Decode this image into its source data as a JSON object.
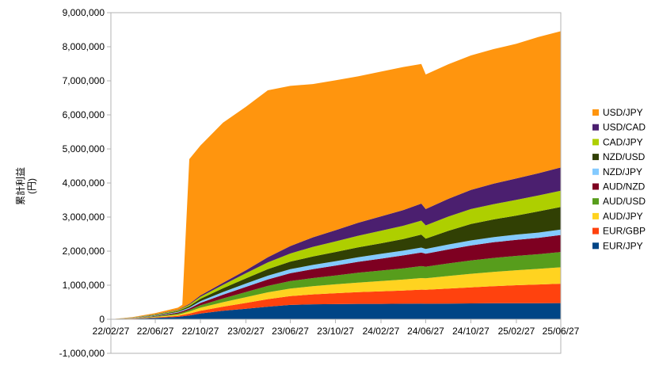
{
  "chart_data": {
    "type": "area",
    "stacked": true,
    "ylabel_lines": [
      "累計利益",
      "(円)"
    ],
    "ylim": [
      -1000000,
      9000000
    ],
    "yticks": [
      -1000000,
      0,
      1000000,
      2000000,
      3000000,
      4000000,
      5000000,
      6000000,
      7000000,
      8000000,
      9000000
    ],
    "ytick_labels": [
      "-1,000,000",
      "0",
      "1,000,000",
      "2,000,000",
      "3,000,000",
      "4,000,000",
      "5,000,000",
      "6,000,000",
      "7,000,000",
      "8,000,000",
      "9,000,000"
    ],
    "xlim": [
      "2022-02-27",
      "2025-06-27"
    ],
    "xticks": [
      "2022-02-27",
      "2022-06-27",
      "2022-10-27",
      "2023-02-27",
      "2023-06-27",
      "2023-10-27",
      "2024-02-27",
      "2024-06-27",
      "2024-10-27",
      "2025-02-27",
      "2025-06-27"
    ],
    "xtick_labels": [
      "22/02/27",
      "22/06/27",
      "22/10/27",
      "23/02/27",
      "23/06/27",
      "23/10/27",
      "24/02/27",
      "24/06/27",
      "24/10/27",
      "25/02/27",
      "25/06/27"
    ],
    "grid": false,
    "legend_position": "right",
    "x": [
      "2022-02-27",
      "2022-04-27",
      "2022-06-27",
      "2022-08-27",
      "2022-09-08",
      "2022-09-27",
      "2022-10-27",
      "2022-12-27",
      "2023-02-27",
      "2023-04-27",
      "2023-06-27",
      "2023-08-27",
      "2023-10-27",
      "2023-12-27",
      "2024-02-27",
      "2024-04-27",
      "2024-06-15",
      "2024-06-27",
      "2024-08-27",
      "2024-10-27",
      "2024-12-27",
      "2025-02-27",
      "2025-04-27",
      "2025-06-27"
    ],
    "series": [
      {
        "name": "EUR/JPY",
        "color": "#004586",
        "values": [
          0,
          15000,
          40000,
          70000,
          85000,
          110000,
          170000,
          250000,
          310000,
          370000,
          420000,
          440000,
          445000,
          450000,
          450000,
          455000,
          460000,
          455000,
          460000,
          465000,
          470000,
          470000,
          470000,
          475000
        ]
      },
      {
        "name": "EUR/GBP",
        "color": "#ff420e",
        "values": [
          0,
          5000,
          15000,
          30000,
          40000,
          55000,
          80000,
          120000,
          170000,
          220000,
          260000,
          290000,
          320000,
          345000,
          370000,
          390000,
          410000,
          410000,
          440000,
          470000,
          500000,
          530000,
          550000,
          570000
        ]
      },
      {
        "name": "AUD/JPY",
        "color": "#ffd320",
        "values": [
          0,
          5000,
          15000,
          35000,
          45000,
          60000,
          90000,
          130000,
          170000,
          200000,
          220000,
          240000,
          260000,
          280000,
          300000,
          320000,
          340000,
          340000,
          370000,
          400000,
          420000,
          440000,
          460000,
          480000
        ]
      },
      {
        "name": "AUD/USD",
        "color": "#579d1c",
        "values": [
          0,
          5000,
          15000,
          30000,
          35000,
          45000,
          70000,
          110000,
          150000,
          190000,
          220000,
          240000,
          260000,
          290000,
          310000,
          330000,
          350000,
          340000,
          370000,
          390000,
          410000,
          420000,
          430000,
          450000
        ]
      },
      {
        "name": "AUD/NZD",
        "color": "#7e0021",
        "values": [
          0,
          5000,
          15000,
          30000,
          35000,
          45000,
          70000,
          110000,
          150000,
          190000,
          230000,
          260000,
          290000,
          320000,
          350000,
          380000,
          400000,
          380000,
          410000,
          440000,
          460000,
          470000,
          480000,
          500000
        ]
      },
      {
        "name": "NZD/JPY",
        "color": "#83caff",
        "values": [
          0,
          5000,
          10000,
          20000,
          25000,
          30000,
          50000,
          80000,
          100000,
          110000,
          120000,
          125000,
          130000,
          135000,
          140000,
          140000,
          145000,
          140000,
          145000,
          150000,
          150000,
          155000,
          155000,
          160000
        ]
      },
      {
        "name": "NZD/USD",
        "color": "#314004",
        "values": [
          0,
          5000,
          15000,
          25000,
          30000,
          40000,
          70000,
          110000,
          150000,
          190000,
          220000,
          250000,
          270000,
          290000,
          310000,
          340000,
          380000,
          300000,
          400000,
          480000,
          520000,
          560000,
          620000,
          660000
        ]
      },
      {
        "name": "CAD/JPY",
        "color": "#aecf00",
        "values": [
          0,
          5000,
          15000,
          25000,
          30000,
          40000,
          60000,
          100000,
          150000,
          200000,
          240000,
          280000,
          310000,
          340000,
          370000,
          390000,
          410000,
          390000,
          420000,
          440000,
          450000,
          460000,
          470000,
          480000
        ]
      },
      {
        "name": "USD/CAD",
        "color": "#4b1f6f",
        "values": [
          0,
          3000,
          10000,
          15000,
          20000,
          25000,
          40000,
          60000,
          90000,
          150000,
          220000,
          280000,
          330000,
          380000,
          420000,
          460000,
          500000,
          480000,
          520000,
          560000,
          600000,
          630000,
          650000,
          680000
        ]
      },
      {
        "name": "USD/JPY",
        "color": "#ff950e",
        "values": [
          0,
          10000,
          30000,
          60000,
          80000,
          4250000,
          4400000,
          4700000,
          4800000,
          4900000,
          4700000,
          4500000,
          4400000,
          4300000,
          4250000,
          4200000,
          4100000,
          3950000,
          3950000,
          3950000,
          3950000,
          3950000,
          4000000,
          4000000
        ]
      }
    ]
  }
}
